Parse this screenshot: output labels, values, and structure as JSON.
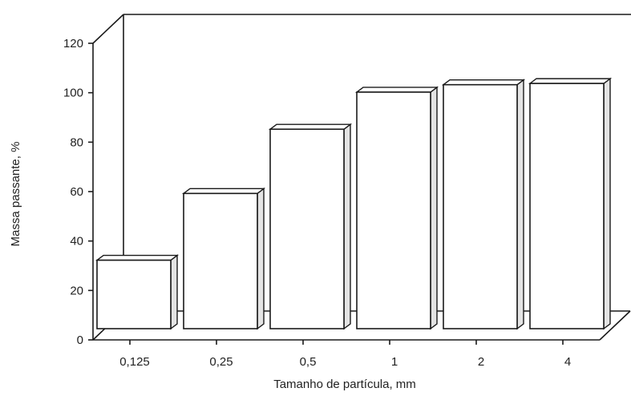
{
  "chart_data": {
    "type": "bar",
    "style": "3d",
    "title": "",
    "xlabel": "Tamanho de partícula, mm",
    "ylabel": "Massa passante, %",
    "categories": [
      "0,125",
      "0,25",
      "0,5",
      "1",
      "2",
      "4"
    ],
    "values": [
      29,
      56,
      82,
      97,
      100,
      100.5
    ],
    "ylim": [
      0,
      120
    ],
    "yticks": [
      "0",
      "20",
      "40",
      "60",
      "80",
      "100",
      "120"
    ],
    "grid": false,
    "legend": "none",
    "colors": {
      "bar": "#ffffff",
      "bar_side": "#e4e4e4",
      "stroke": "#1a1a1a"
    }
  }
}
